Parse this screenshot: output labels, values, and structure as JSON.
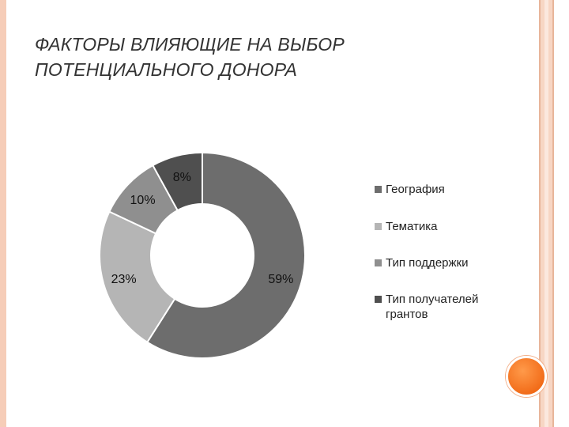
{
  "title": {
    "line1": "ФАКТОРЫ ВЛИЯЮЩИЕ НА ВЫБОР",
    "line2": "ПОТЕНЦИАЛЬНОГО ДОНОРА"
  },
  "chart_data": {
    "type": "pie",
    "donut": true,
    "categories": [
      "География",
      "Тематика",
      "Тип поддержки",
      "Тип получателей грантов"
    ],
    "legend_lines": [
      [
        "География"
      ],
      [
        "Тематика"
      ],
      [
        "Тип поддержки"
      ],
      [
        "Тип получателей",
        "грантов"
      ]
    ],
    "values": [
      59,
      23,
      10,
      8
    ],
    "labels": [
      "59%",
      "23%",
      "10%",
      "8%"
    ],
    "colors": [
      "#6d6d6d",
      "#b5b5b5",
      "#8f8f8f",
      "#4f4f4f"
    ],
    "legend_position": "right"
  }
}
